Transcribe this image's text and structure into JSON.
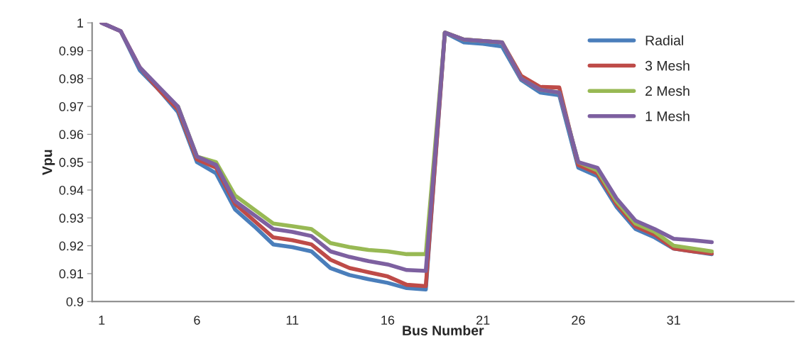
{
  "chart_data": {
    "type": "line",
    "xlabel": "Bus Number",
    "ylabel": "Vpu",
    "x": [
      1,
      2,
      3,
      4,
      5,
      6,
      7,
      8,
      9,
      10,
      11,
      12,
      13,
      14,
      15,
      16,
      17,
      18,
      19,
      20,
      21,
      22,
      23,
      24,
      25,
      26,
      27,
      28,
      29,
      30,
      31,
      32,
      33
    ],
    "series": [
      {
        "name": "Radial",
        "color": "#4a7ebb",
        "values": [
          1.0,
          0.997,
          0.983,
          0.976,
          0.968,
          0.95,
          0.946,
          0.933,
          0.927,
          0.9205,
          0.9195,
          0.918,
          0.912,
          0.9095,
          0.908,
          0.9067,
          0.9048,
          0.9043,
          0.9965,
          0.993,
          0.9925,
          0.9915,
          0.9795,
          0.975,
          0.974,
          0.948,
          0.945,
          0.934,
          0.926,
          0.923,
          0.919,
          0.918,
          0.917
        ]
      },
      {
        "name": "3 Mesh",
        "color": "#be4b48",
        "values": [
          1.0,
          0.997,
          0.984,
          0.976,
          0.969,
          0.951,
          0.948,
          0.935,
          0.929,
          0.923,
          0.922,
          0.9205,
          0.915,
          0.912,
          0.9105,
          0.909,
          0.906,
          0.9055,
          0.9965,
          0.994,
          0.9935,
          0.993,
          0.981,
          0.977,
          0.9768,
          0.949,
          0.946,
          0.935,
          0.927,
          0.924,
          0.919,
          0.918,
          0.9172
        ]
      },
      {
        "name": "2 Mesh",
        "color": "#98b954",
        "values": [
          null,
          null,
          null,
          null,
          0.97,
          0.952,
          0.95,
          0.938,
          0.933,
          0.928,
          0.927,
          0.926,
          0.921,
          0.9195,
          0.9185,
          0.918,
          0.917,
          0.917,
          0.9965,
          0.994,
          0.9935,
          0.993,
          0.98,
          0.976,
          0.975,
          0.95,
          0.947,
          0.936,
          0.928,
          0.925,
          0.92,
          0.919,
          0.918
        ]
      },
      {
        "name": "1 Mesh",
        "color": "#7d60a0",
        "values": [
          1.0,
          0.997,
          0.984,
          0.977,
          0.97,
          0.952,
          0.949,
          0.936,
          0.931,
          0.926,
          0.925,
          0.9235,
          0.918,
          0.916,
          0.9145,
          0.9133,
          0.9113,
          0.911,
          0.9965,
          0.994,
          0.9935,
          0.993,
          0.98,
          0.976,
          0.975,
          0.95,
          0.948,
          0.937,
          0.929,
          0.926,
          0.9225,
          0.922,
          0.9213
        ]
      }
    ],
    "xlim": [
      0.5,
      37.3
    ],
    "xticks": [
      1,
      6,
      11,
      16,
      21,
      26,
      31
    ],
    "ylim": [
      0.9,
      1.0
    ],
    "yticks": [
      {
        "value": 0.9,
        "label": "0.9"
      },
      {
        "value": 0.91,
        "label": "0.91"
      },
      {
        "value": 0.92,
        "label": "0.92"
      },
      {
        "value": 0.93,
        "label": "0.93"
      },
      {
        "value": 0.94,
        "label": "0.94"
      },
      {
        "value": 0.95,
        "label": "0.95"
      },
      {
        "value": 0.96,
        "label": "0.96"
      },
      {
        "value": 0.97,
        "label": "0.97"
      },
      {
        "value": 0.98,
        "label": "0.98"
      },
      {
        "value": 0.99,
        "label": "0.99"
      },
      {
        "value": 1.0,
        "label": "1"
      }
    ],
    "legend": "top right",
    "grid": false,
    "marker": "none",
    "line_style": "solid"
  }
}
